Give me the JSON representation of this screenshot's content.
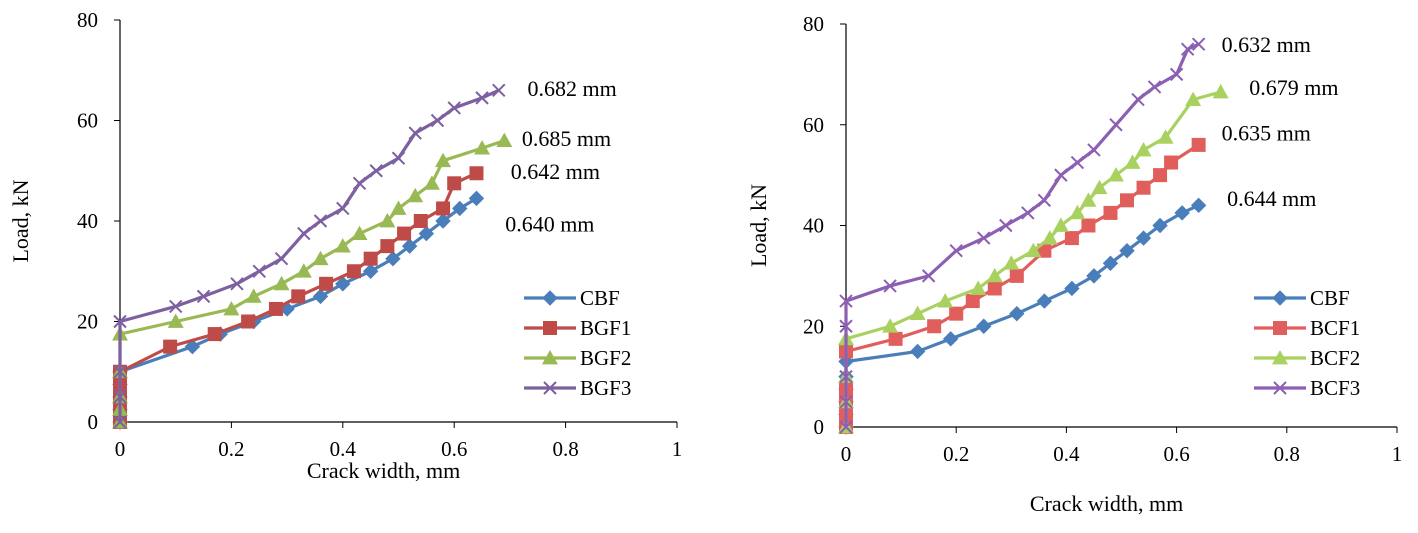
{
  "charts": [
    {
      "id": "left",
      "type": "line",
      "xlabel": "Crack width, mm",
      "ylabel": "Load, kN",
      "xlim": [
        0,
        1
      ],
      "ylim": [
        0,
        80
      ],
      "xticks": [
        "0",
        "0.2",
        "0.4",
        "0.6",
        "0.8",
        "1"
      ],
      "yticks": [
        "0",
        "20",
        "40",
        "60",
        "80"
      ],
      "grid": false,
      "legend_position": "bottom-right",
      "series": [
        {
          "name": "CBF",
          "color": "#4A7EBB",
          "marker": "diamond",
          "x": [
            0,
            0,
            0,
            0,
            0,
            0.13,
            0.18,
            0.24,
            0.3,
            0.36,
            0.4,
            0.45,
            0.49,
            0.52,
            0.55,
            0.58,
            0.61,
            0.64
          ],
          "y": [
            0,
            2.5,
            5,
            7.5,
            10,
            15,
            17.5,
            20,
            22.5,
            25,
            27.5,
            30,
            32.5,
            35,
            37.5,
            40,
            42.5,
            44.5
          ],
          "end_label": "0.640 mm"
        },
        {
          "name": "BGF1",
          "color": "#BE4B48",
          "marker": "square",
          "x": [
            0,
            0,
            0,
            0,
            0,
            0.09,
            0.17,
            0.23,
            0.28,
            0.32,
            0.37,
            0.42,
            0.45,
            0.48,
            0.51,
            0.54,
            0.58,
            0.6,
            0.64
          ],
          "y": [
            0,
            2.5,
            5,
            7.5,
            10,
            15,
            17.5,
            20,
            22.5,
            25,
            27.5,
            30,
            32.5,
            35,
            37.5,
            40,
            42.5,
            47.5,
            49.5
          ],
          "end_label": "0.642 mm"
        },
        {
          "name": "BGF2",
          "color": "#98B954",
          "marker": "triangle",
          "x": [
            0,
            0,
            0,
            0,
            0,
            0.1,
            0.2,
            0.24,
            0.29,
            0.33,
            0.36,
            0.4,
            0.43,
            0.48,
            0.5,
            0.53,
            0.56,
            0.58,
            0.65,
            0.69
          ],
          "y": [
            0,
            2.5,
            5,
            10,
            17.5,
            20,
            22.5,
            25,
            27.5,
            30,
            32.5,
            35,
            37.5,
            40,
            42.5,
            45,
            47.5,
            52,
            54.5,
            56
          ],
          "end_label": "0.685 mm"
        },
        {
          "name": "BGF3",
          "color": "#7D60A0",
          "marker": "x",
          "x": [
            0,
            0,
            0,
            0,
            0.1,
            0.15,
            0.21,
            0.25,
            0.29,
            0.33,
            0.36,
            0.4,
            0.43,
            0.46,
            0.5,
            0.53,
            0.57,
            0.6,
            0.65,
            0.68
          ],
          "y": [
            0,
            5,
            10,
            20,
            23,
            25,
            27.5,
            30,
            32.5,
            37.5,
            40,
            42.5,
            47.5,
            50,
            52.5,
            57.5,
            60,
            62.5,
            64.5,
            66
          ],
          "end_label": "0.682 mm"
        }
      ]
    },
    {
      "id": "right",
      "type": "line",
      "xlabel": "Crack width, mm",
      "ylabel": "Load, kN",
      "xlim": [
        0,
        1
      ],
      "ylim": [
        0,
        80
      ],
      "xticks": [
        "0",
        "0.2",
        "0.4",
        "0.6",
        "0.8",
        "1"
      ],
      "yticks": [
        "0",
        "20",
        "40",
        "60",
        "80"
      ],
      "grid": false,
      "legend_position": "bottom-right",
      "series": [
        {
          "name": "CBF",
          "color": "#4A7EBB",
          "marker": "diamond",
          "x": [
            0,
            0,
            0,
            0,
            0,
            0,
            0.13,
            0.19,
            0.25,
            0.31,
            0.36,
            0.41,
            0.45,
            0.48,
            0.51,
            0.54,
            0.57,
            0.61,
            0.64
          ],
          "y": [
            0,
            2.5,
            5,
            7.5,
            10,
            13,
            15,
            17.5,
            20,
            22.5,
            25,
            27.5,
            30,
            32.5,
            35,
            37.5,
            40,
            42.5,
            44
          ],
          "end_label": "0.644 mm"
        },
        {
          "name": "BCF1",
          "color": "#E05E5B",
          "marker": "square",
          "x": [
            0,
            0,
            0,
            0,
            0,
            0.09,
            0.16,
            0.2,
            0.23,
            0.27,
            0.31,
            0.36,
            0.41,
            0.44,
            0.48,
            0.51,
            0.54,
            0.57,
            0.59,
            0.64
          ],
          "y": [
            0,
            2.5,
            5,
            7.5,
            15,
            17.5,
            20,
            22.5,
            25,
            27.5,
            30,
            35,
            37.5,
            40,
            42.5,
            45,
            47.5,
            50,
            52.5,
            56
          ],
          "end_label": "0.635 mm"
        },
        {
          "name": "BCF2",
          "color": "#A9D160",
          "marker": "triangle",
          "x": [
            0,
            0,
            0,
            0,
            0.08,
            0.13,
            0.18,
            0.24,
            0.27,
            0.3,
            0.34,
            0.37,
            0.39,
            0.42,
            0.44,
            0.46,
            0.49,
            0.52,
            0.54,
            0.58,
            0.63,
            0.68
          ],
          "y": [
            0,
            5,
            10,
            17.5,
            20,
            22.5,
            25,
            27.5,
            30,
            32.5,
            35,
            37.5,
            40,
            42.5,
            45,
            47.5,
            50,
            52.5,
            55,
            57.5,
            65,
            66.5
          ],
          "end_label": "0.679 mm"
        },
        {
          "name": "BCF3",
          "color": "#8C5FB3",
          "marker": "x",
          "x": [
            0,
            0,
            0,
            0,
            0,
            0.08,
            0.15,
            0.2,
            0.25,
            0.29,
            0.33,
            0.36,
            0.39,
            0.42,
            0.45,
            0.49,
            0.53,
            0.56,
            0.6,
            0.62,
            0.64
          ],
          "y": [
            0,
            5,
            10,
            20,
            25,
            28,
            30,
            35,
            37.5,
            40,
            42.5,
            45,
            50,
            52.5,
            55,
            60,
            65,
            67.5,
            70,
            75,
            76
          ],
          "end_label": "0.632 mm"
        }
      ]
    }
  ]
}
